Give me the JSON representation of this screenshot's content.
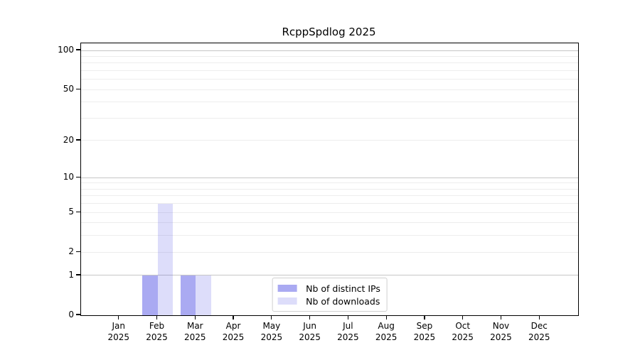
{
  "chart_data": {
    "type": "bar",
    "title": "RcppSpdlog 2025",
    "categories": [
      "Jan",
      "Feb",
      "Mar",
      "Apr",
      "May",
      "Jun",
      "Jul",
      "Aug",
      "Sep",
      "Oct",
      "Nov",
      "Dec"
    ],
    "year_label": "2025",
    "series": [
      {
        "name": "Nb of distinct IPs",
        "color": "rgba(85,85,230,0.5)",
        "values": [
          0,
          1,
          1,
          0,
          0,
          0,
          0,
          0,
          0,
          0,
          0,
          0
        ]
      },
      {
        "name": "Nb of downloads",
        "color": "rgba(85,85,230,0.2)",
        "values": [
          0,
          6,
          1,
          0,
          0,
          0,
          0,
          0,
          0,
          0,
          0,
          0
        ]
      }
    ],
    "yscale": "log1p",
    "yticks": [
      0,
      1,
      2,
      5,
      10,
      20,
      50,
      100
    ],
    "ylim": [
      0,
      113
    ],
    "grid": {
      "major_lines": [
        1,
        10,
        100
      ],
      "minor_lines": [
        2,
        3,
        4,
        5,
        6,
        7,
        8,
        9,
        20,
        30,
        40,
        50,
        60,
        70,
        80,
        90
      ],
      "major_color": "#c6c6c6",
      "minor_color": "#ededed"
    },
    "legend_position": "lower-center",
    "bar_width_fraction": 0.4,
    "colors": {
      "spine": "#000000",
      "text": "#000000",
      "background": "#ffffff",
      "legend_border": "#d0d0d0"
    }
  }
}
